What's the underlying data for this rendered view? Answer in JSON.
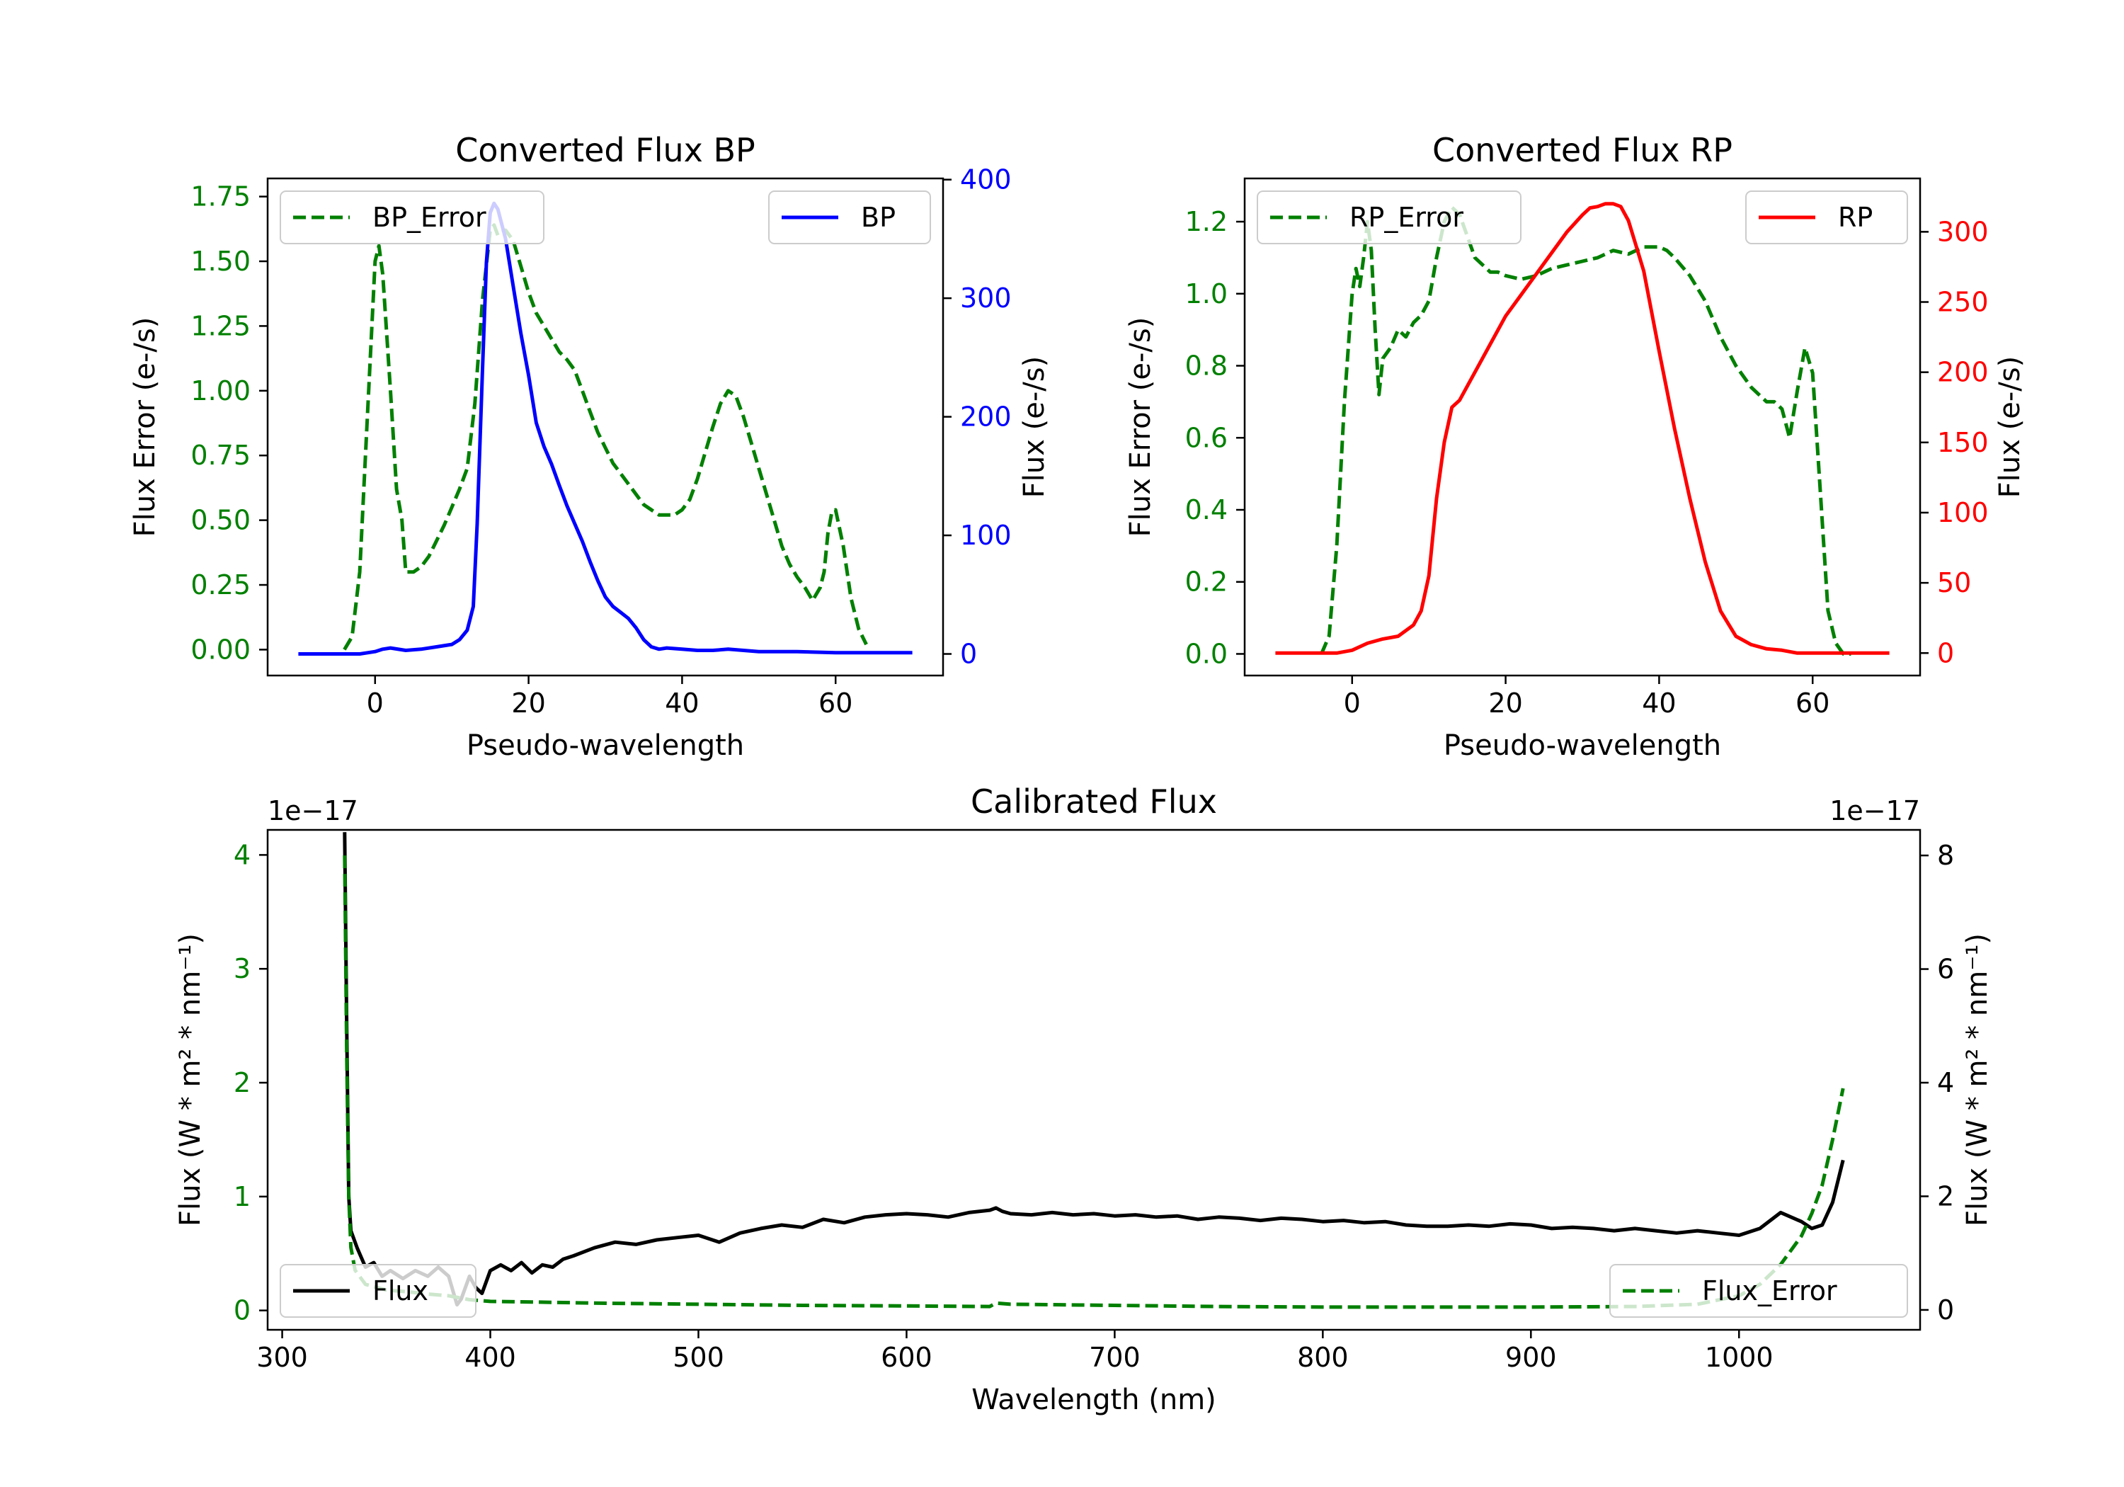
{
  "colors": {
    "green": "#008000",
    "blue": "#0000ff",
    "red": "#ff0000",
    "black": "#000000"
  },
  "chart_data": [
    {
      "id": "bp",
      "type": "line",
      "title": "Converted Flux BP",
      "xlabel": "Pseudo-wavelength",
      "ylabel_left": "Flux Error (e-/s)",
      "ylabel_right": "Flux (e-/s)",
      "xlim": [
        -14,
        74
      ],
      "ylim_left": [
        -0.1,
        1.82
      ],
      "ylim_right": [
        -18.2,
        401
      ],
      "xticks": [
        0,
        20,
        40,
        60
      ],
      "xtick_labels": [
        "0",
        "20",
        "40",
        "60"
      ],
      "yticks_left": [
        0,
        0.25,
        0.5,
        0.75,
        1.0,
        1.25,
        1.5,
        1.75
      ],
      "ytick_labels_left": [
        "0.00",
        "0.25",
        "0.50",
        "0.75",
        "1.00",
        "1.25",
        "1.50",
        "1.75"
      ],
      "yticks_right": [
        0,
        100,
        200,
        300,
        400
      ],
      "ytick_labels_right": [
        "0",
        "100",
        "200",
        "300",
        "400"
      ],
      "legend_left": "BP_Error",
      "legend_right": "BP",
      "series": [
        {
          "name": "BP_Error",
          "axis": "left",
          "style": "dashed",
          "color": "#008000",
          "x": [
            -4,
            -3,
            -2,
            -1,
            0,
            0.5,
            1,
            2,
            2.8,
            3.5,
            4,
            5,
            6,
            7,
            8,
            9,
            10,
            11,
            12,
            13,
            14,
            15,
            15.5,
            16,
            17,
            18,
            19,
            20,
            21,
            22,
            23,
            24,
            25,
            26,
            27,
            28,
            29,
            30,
            31,
            32,
            33,
            34,
            35,
            36,
            37,
            38,
            39,
            40,
            41,
            42,
            43,
            44,
            45,
            46,
            47,
            48,
            49,
            50,
            51,
            52,
            53,
            54,
            55,
            56,
            57,
            58,
            58.5,
            59,
            59.5,
            60,
            61,
            62,
            63,
            64
          ],
          "y": [
            0.0,
            0.05,
            0.3,
            0.9,
            1.5,
            1.56,
            1.45,
            1.0,
            0.62,
            0.5,
            0.3,
            0.3,
            0.32,
            0.36,
            0.42,
            0.48,
            0.55,
            0.62,
            0.7,
            0.95,
            1.35,
            1.62,
            1.64,
            1.6,
            1.62,
            1.58,
            1.48,
            1.38,
            1.3,
            1.25,
            1.2,
            1.15,
            1.12,
            1.08,
            1.0,
            0.92,
            0.84,
            0.78,
            0.72,
            0.68,
            0.64,
            0.6,
            0.56,
            0.54,
            0.52,
            0.52,
            0.52,
            0.54,
            0.58,
            0.66,
            0.76,
            0.86,
            0.95,
            1.0,
            0.98,
            0.9,
            0.8,
            0.7,
            0.6,
            0.5,
            0.4,
            0.33,
            0.28,
            0.24,
            0.19,
            0.24,
            0.3,
            0.45,
            0.53,
            0.54,
            0.4,
            0.2,
            0.08,
            0.02
          ]
        },
        {
          "name": "BP",
          "axis": "right",
          "style": "solid",
          "color": "#0000ff",
          "x": [
            -10,
            -6,
            -2,
            0,
            1,
            2,
            4,
            6,
            8,
            10,
            11,
            12,
            12.8,
            13.3,
            14,
            14.5,
            15,
            15.5,
            16,
            17,
            18,
            19,
            20,
            21,
            22,
            23,
            24,
            25,
            26,
            27,
            28,
            29,
            30,
            31,
            32,
            33,
            34,
            35,
            36,
            37,
            38,
            40,
            42,
            44,
            46,
            48,
            50,
            55,
            60,
            65,
            70
          ],
          "y": [
            0,
            0,
            0,
            2,
            4,
            5,
            3,
            4,
            6,
            8,
            12,
            20,
            40,
            110,
            240,
            330,
            372,
            380,
            375,
            350,
            310,
            270,
            235,
            195,
            175,
            160,
            142,
            125,
            110,
            95,
            78,
            62,
            48,
            40,
            35,
            30,
            22,
            12,
            6,
            4,
            5,
            4,
            3,
            3,
            4,
            3,
            2,
            2,
            1,
            1,
            1
          ]
        }
      ]
    },
    {
      "id": "rp",
      "type": "line",
      "title": "Converted Flux RP",
      "xlabel": "Pseudo-wavelength",
      "ylabel_left": "Flux Error (e-/s)",
      "ylabel_right": "Flux (e-/s)",
      "xlim": [
        -14,
        74
      ],
      "ylim_left": [
        -0.06,
        1.32
      ],
      "ylim_right": [
        -16,
        338
      ],
      "xticks": [
        0,
        20,
        40,
        60
      ],
      "xtick_labels": [
        "0",
        "20",
        "40",
        "60"
      ],
      "yticks_left": [
        0,
        0.2,
        0.4,
        0.6,
        0.8,
        1.0,
        1.2
      ],
      "ytick_labels_left": [
        "0.0",
        "0.2",
        "0.4",
        "0.6",
        "0.8",
        "1.0",
        "1.2"
      ],
      "yticks_right": [
        0,
        50,
        100,
        150,
        200,
        250,
        300
      ],
      "ytick_labels_right": [
        "0",
        "50",
        "100",
        "150",
        "200",
        "250",
        "300"
      ],
      "legend_left": "RP_Error",
      "legend_right": "RP",
      "series": [
        {
          "name": "RP_Error",
          "axis": "left",
          "style": "dashed",
          "color": "#008000",
          "x": [
            -4,
            -3,
            -2,
            -1,
            0,
            0.5,
            1,
            1.5,
            2,
            2.5,
            3,
            3.5,
            4,
            5,
            6,
            7,
            8,
            9,
            10,
            11,
            12,
            13,
            14,
            15,
            16,
            17,
            18,
            19,
            20,
            22,
            24,
            26,
            28,
            30,
            32,
            34,
            36,
            38,
            40,
            41,
            42,
            44,
            46,
            48,
            50,
            52,
            54,
            55,
            56,
            57,
            58,
            59,
            60,
            61,
            62,
            63,
            64,
            65
          ],
          "y": [
            0.0,
            0.05,
            0.3,
            0.7,
            1.0,
            1.07,
            1.02,
            1.1,
            1.2,
            1.12,
            0.9,
            0.72,
            0.82,
            0.85,
            0.9,
            0.88,
            0.92,
            0.94,
            0.98,
            1.1,
            1.2,
            1.24,
            1.22,
            1.16,
            1.1,
            1.08,
            1.06,
            1.06,
            1.05,
            1.04,
            1.05,
            1.07,
            1.08,
            1.09,
            1.1,
            1.12,
            1.11,
            1.13,
            1.13,
            1.12,
            1.1,
            1.05,
            0.98,
            0.88,
            0.8,
            0.74,
            0.7,
            0.7,
            0.68,
            0.6,
            0.73,
            0.85,
            0.78,
            0.45,
            0.12,
            0.03,
            0.0,
            0.0
          ]
        },
        {
          "name": "RP",
          "axis": "right",
          "style": "solid",
          "color": "#ff0000",
          "x": [
            -10,
            -6,
            -2,
            0,
            2,
            4,
            6,
            8,
            9,
            10,
            11,
            12,
            13,
            14,
            16,
            18,
            20,
            22,
            24,
            26,
            28,
            30,
            31,
            32,
            33,
            34,
            35,
            36,
            37,
            38,
            40,
            42,
            44,
            46,
            48,
            50,
            52,
            54,
            56,
            58,
            60,
            65,
            70
          ],
          "y": [
            0,
            0,
            0,
            2,
            7,
            10,
            12,
            20,
            30,
            55,
            110,
            150,
            175,
            180,
            200,
            220,
            240,
            255,
            270,
            285,
            300,
            312,
            317,
            318,
            320,
            320,
            318,
            308,
            290,
            272,
            215,
            160,
            110,
            65,
            30,
            12,
            6,
            3,
            2,
            0,
            0,
            0,
            0
          ]
        }
      ]
    },
    {
      "id": "cal",
      "type": "line",
      "title": "Calibrated Flux",
      "xlabel": "Wavelength (nm)",
      "ylabel_left": "Flux (W * m² * nm⁻¹)",
      "ylabel_right": "Flux (W * m² * nm⁻¹)",
      "offset_left": "1e−17",
      "offset_right": "1e−17",
      "xlim": [
        293,
        1087
      ],
      "ylim_left": [
        -0.17,
        4.22
      ],
      "ylim_right": [
        -0.35,
        8.45
      ],
      "xticks": [
        300,
        400,
        500,
        600,
        700,
        800,
        900,
        1000
      ],
      "xtick_labels": [
        "300",
        "400",
        "500",
        "600",
        "700",
        "800",
        "900",
        "1000"
      ],
      "yticks_left": [
        0,
        1,
        2,
        3,
        4
      ],
      "ytick_labels_left": [
        "0",
        "1",
        "2",
        "3",
        "4"
      ],
      "yticks_right": [
        0,
        2,
        4,
        6,
        8
      ],
      "ytick_labels_right": [
        "0",
        "2",
        "4",
        "6",
        "8"
      ],
      "legend_left": "Flux",
      "legend_right": "Flux_Error",
      "series": [
        {
          "name": "Flux",
          "axis": "left",
          "style": "solid",
          "color": "#000000",
          "x": [
            330,
            331,
            332,
            333,
            336,
            340,
            344,
            348,
            352,
            358,
            364,
            370,
            375,
            380,
            384,
            386,
            390,
            393,
            396,
            400,
            405,
            410,
            415,
            420,
            425,
            430,
            435,
            440,
            450,
            460,
            470,
            480,
            490,
            500,
            510,
            520,
            530,
            540,
            550,
            560,
            570,
            580,
            590,
            600,
            610,
            620,
            630,
            640,
            643,
            646,
            650,
            660,
            670,
            680,
            690,
            700,
            710,
            720,
            730,
            740,
            750,
            760,
            770,
            780,
            790,
            800,
            810,
            820,
            830,
            840,
            850,
            860,
            870,
            880,
            890,
            900,
            910,
            920,
            930,
            940,
            950,
            960,
            970,
            980,
            990,
            1000,
            1010,
            1020,
            1030,
            1035,
            1040,
            1045,
            1050
          ],
          "y": [
            4.2,
            2.5,
            1.0,
            0.7,
            0.55,
            0.38,
            0.42,
            0.3,
            0.35,
            0.28,
            0.35,
            0.3,
            0.38,
            0.3,
            0.05,
            0.1,
            0.3,
            0.2,
            0.15,
            0.35,
            0.4,
            0.35,
            0.42,
            0.33,
            0.4,
            0.38,
            0.45,
            0.48,
            0.55,
            0.6,
            0.58,
            0.62,
            0.64,
            0.66,
            0.6,
            0.68,
            0.72,
            0.75,
            0.73,
            0.8,
            0.77,
            0.82,
            0.84,
            0.85,
            0.84,
            0.82,
            0.86,
            0.88,
            0.9,
            0.87,
            0.85,
            0.84,
            0.86,
            0.84,
            0.85,
            0.83,
            0.84,
            0.82,
            0.83,
            0.8,
            0.82,
            0.81,
            0.79,
            0.81,
            0.8,
            0.78,
            0.79,
            0.77,
            0.78,
            0.75,
            0.74,
            0.74,
            0.75,
            0.74,
            0.76,
            0.75,
            0.72,
            0.73,
            0.72,
            0.7,
            0.72,
            0.7,
            0.68,
            0.7,
            0.68,
            0.66,
            0.72,
            0.86,
            0.78,
            0.72,
            0.75,
            0.95,
            1.32
          ]
        },
        {
          "name": "Flux_Error",
          "axis": "right",
          "style": "dashed",
          "color": "#008000",
          "x": [
            330,
            331,
            332,
            333,
            335,
            338,
            340,
            345,
            350,
            360,
            370,
            380,
            390,
            400,
            420,
            450,
            500,
            550,
            600,
            640,
            643,
            650,
            700,
            750,
            800,
            850,
            900,
            950,
            980,
            1000,
            1010,
            1020,
            1030,
            1035,
            1040,
            1045,
            1050
          ],
          "y": [
            8.0,
            4.5,
            2.0,
            1.1,
            0.7,
            0.55,
            0.45,
            0.4,
            0.35,
            0.32,
            0.28,
            0.25,
            0.18,
            0.15,
            0.14,
            0.12,
            0.1,
            0.08,
            0.07,
            0.06,
            0.12,
            0.1,
            0.08,
            0.06,
            0.05,
            0.05,
            0.05,
            0.06,
            0.1,
            0.25,
            0.45,
            0.8,
            1.3,
            1.7,
            2.2,
            3.0,
            3.9
          ]
        }
      ]
    }
  ]
}
